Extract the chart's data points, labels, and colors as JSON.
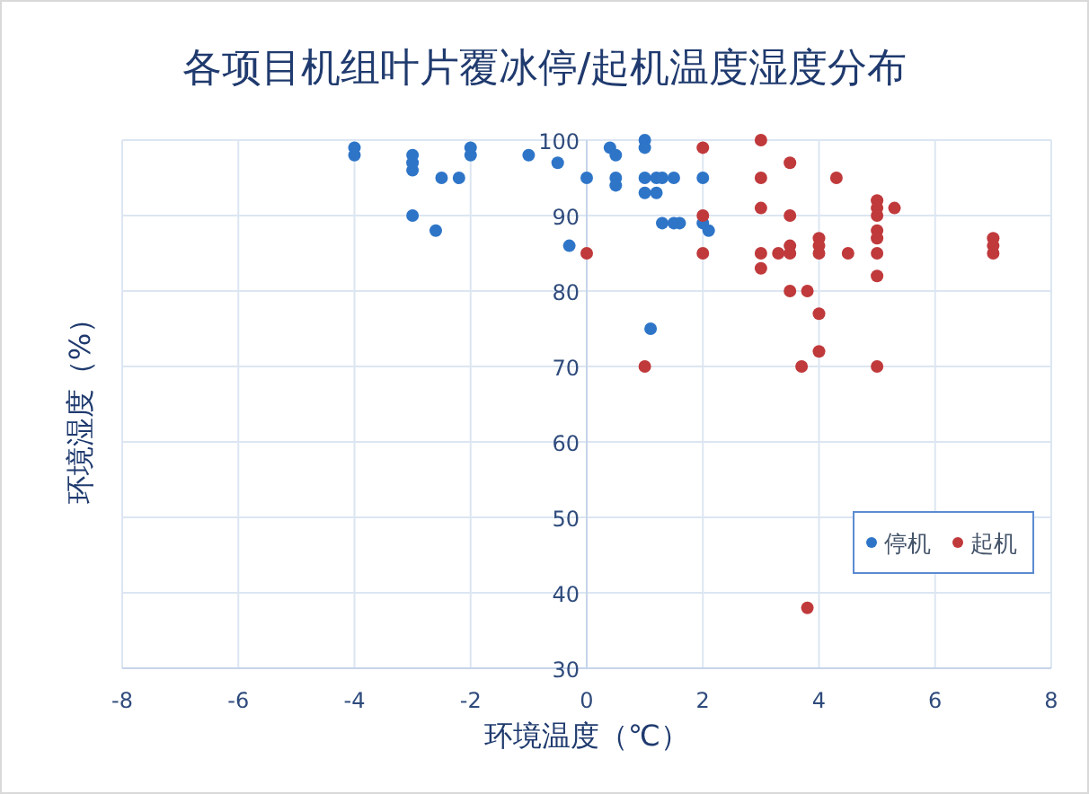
{
  "chart_data": {
    "type": "scatter",
    "title": "各项目机组叶片覆冰停/起机温度湿度分布",
    "xlabel": "环境温度（℃）",
    "ylabel": "环境湿度（%）",
    "xlim": [
      -8,
      8
    ],
    "ylim": [
      30,
      100
    ],
    "xticks": [
      -8,
      -6,
      -4,
      -2,
      0,
      2,
      4,
      6,
      8
    ],
    "yticks": [
      30,
      40,
      50,
      60,
      70,
      80,
      90,
      100
    ],
    "grid": true,
    "legend": "right",
    "marker": "circle",
    "series": [
      {
        "name": "停机",
        "color": "#2e75c8",
        "x": [
          -4,
          -4,
          -3,
          -3,
          -3,
          -3,
          -2.6,
          -2.5,
          -2.2,
          -2,
          -2,
          -1,
          -0.5,
          -0.3,
          0,
          0.4,
          0.5,
          0.5,
          0.5,
          1,
          1,
          1,
          1,
          1.2,
          1.3,
          1.2,
          1.5,
          1.3,
          1.5,
          1.6,
          2,
          2,
          2.1,
          1.1
        ],
        "values": [
          99,
          98,
          98,
          97,
          96,
          90,
          88,
          95,
          95,
          99,
          98,
          98,
          97,
          86,
          95,
          99,
          98,
          95,
          94,
          100,
          99,
          95,
          93,
          95,
          95,
          93,
          95,
          89,
          89,
          89,
          95,
          89,
          88,
          75
        ]
      },
      {
        "name": "起机",
        "color": "#c0393b",
        "x": [
          0,
          1,
          2,
          2,
          2,
          3,
          3,
          3,
          3,
          3,
          3.3,
          3.5,
          3.5,
          3.5,
          3.5,
          3.5,
          3.8,
          3.7,
          3.8,
          4,
          4,
          4,
          4,
          4,
          4.3,
          4.5,
          5,
          5,
          5,
          5,
          5,
          5,
          5,
          5,
          5.3,
          7,
          7,
          7
        ],
        "values": [
          85,
          70,
          99,
          90,
          85,
          100,
          95,
          91,
          85,
          83,
          85,
          97,
          90,
          86,
          85,
          80,
          80,
          70,
          38,
          87,
          86,
          85,
          77,
          72,
          95,
          85,
          92,
          91,
          90,
          88,
          87,
          85,
          82,
          70,
          91,
          87,
          86,
          85
        ]
      }
    ]
  }
}
